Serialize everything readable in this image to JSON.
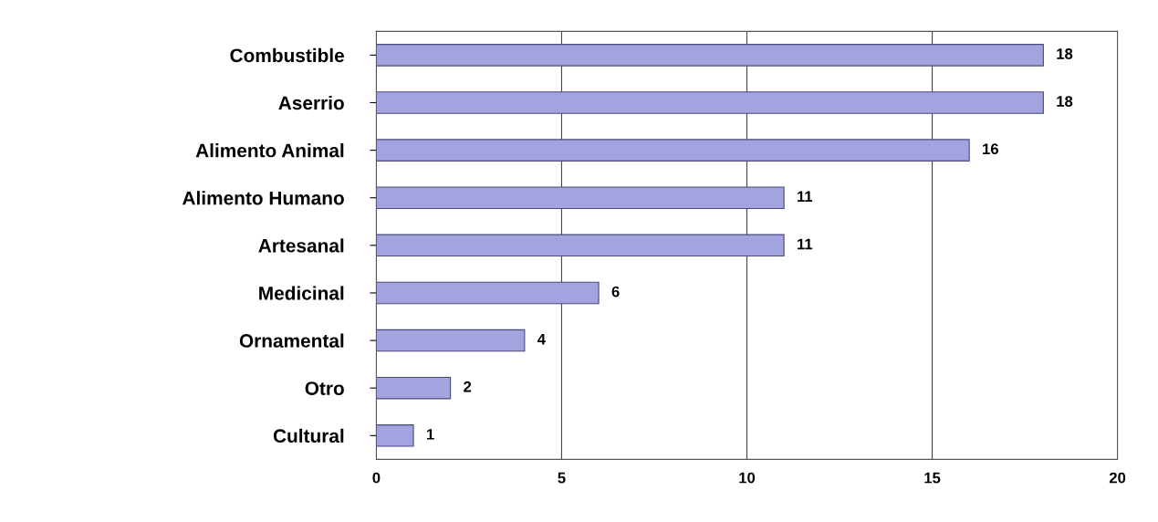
{
  "chart_data": {
    "type": "bar",
    "orientation": "horizontal",
    "categories": [
      "Combustible",
      "Aserrio",
      "Alimento Animal",
      "Alimento Humano",
      "Artesanal",
      "Medicinal",
      "Ornamental",
      "Otro",
      "Cultural"
    ],
    "values": [
      18,
      18,
      16,
      11,
      11,
      6,
      4,
      2,
      1
    ],
    "color": "#a3a3e0",
    "xlim": [
      0,
      20
    ],
    "xticks": [
      0,
      5,
      10,
      15,
      20
    ],
    "grid": "x",
    "data_labels": true
  }
}
